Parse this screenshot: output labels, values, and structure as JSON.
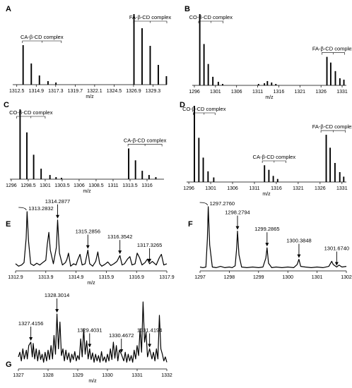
{
  "chart_data": [
    {
      "panel": "A",
      "type": "line",
      "title": "",
      "xlabel": "m/z",
      "ylabel": "",
      "xlim": [
        1312.0,
        1331.0
      ],
      "ylim": [
        0,
        100
      ],
      "xticks": [
        1312.5,
        1314.9,
        1317.3,
        1319.7,
        1322.1,
        1324.5,
        1326.9,
        1329.3
      ],
      "peaks": [
        [
          1313.28,
          56
        ],
        [
          1314.29,
          30
        ],
        [
          1315.29,
          13
        ],
        [
          1316.35,
          5
        ],
        [
          1317.33,
          3
        ],
        [
          1326.95,
          100
        ],
        [
          1327.95,
          80
        ],
        [
          1328.95,
          55
        ],
        [
          1329.95,
          28
        ],
        [
          1330.95,
          12
        ]
      ],
      "annotations": [
        {
          "text": "CA-β-CD complex",
          "x1": 1313.2,
          "x2": 1318.0
        },
        {
          "text": "FA-β-CD complex",
          "x1": 1326.9,
          "x2": 1331.0
        }
      ]
    },
    {
      "panel": "B",
      "type": "line",
      "title": "",
      "xlabel": "m/z",
      "ylabel": "",
      "xlim": [
        1295.5,
        1332.0
      ],
      "ylim": [
        0,
        100
      ],
      "xticks": [
        1296,
        1301,
        1306,
        1311,
        1316,
        1321,
        1326,
        1331
      ],
      "peaks": [
        [
          1297.28,
          100
        ],
        [
          1298.28,
          58
        ],
        [
          1299.29,
          30
        ],
        [
          1300.38,
          12
        ],
        [
          1301.67,
          5
        ],
        [
          1302.7,
          2
        ],
        [
          1311.2,
          2
        ],
        [
          1312.6,
          3
        ],
        [
          1313.3,
          6
        ],
        [
          1314.3,
          4
        ],
        [
          1315.3,
          2
        ],
        [
          1327.4,
          40
        ],
        [
          1328.3,
          32
        ],
        [
          1329.4,
          20
        ],
        [
          1330.47,
          10
        ],
        [
          1331.42,
          8
        ]
      ],
      "annotations": [
        {
          "text": "CO-β-CD complex",
          "x1": 1297.0,
          "x2": 1302.8
        },
        {
          "text": "FA-β-CD complex",
          "x1": 1326.2,
          "x2": 1331.6
        }
      ]
    },
    {
      "panel": "C",
      "type": "line",
      "title": "",
      "xlabel": "m/z",
      "ylabel": "",
      "xlim": [
        1295.8,
        1318.5
      ],
      "ylim": [
        0,
        100
      ],
      "xticks": [
        1296,
        1298.5,
        1301,
        1303.5,
        1306,
        1308.5,
        1311,
        1313.5,
        1316
      ],
      "peaks": [
        [
          1297.3,
          100
        ],
        [
          1298.3,
          67
        ],
        [
          1299.3,
          35
        ],
        [
          1300.4,
          15
        ],
        [
          1301.7,
          6
        ],
        [
          1302.6,
          3
        ],
        [
          1303.4,
          2
        ],
        [
          1313.3,
          44
        ],
        [
          1314.3,
          27
        ],
        [
          1315.3,
          12
        ],
        [
          1316.3,
          6
        ],
        [
          1317.3,
          3
        ]
      ],
      "annotations": [
        {
          "text": "CO-β-CD complex",
          "x1": 1296.8,
          "x2": 1301.0
        },
        {
          "text": "CA-β-CD complex",
          "x1": 1313.2,
          "x2": 1318.2
        }
      ]
    },
    {
      "panel": "D",
      "type": "line",
      "title": "",
      "xlabel": "m/z",
      "ylabel": "",
      "xlim": [
        1295.5,
        1332.0
      ],
      "ylim": [
        0,
        100
      ],
      "xticks": [
        1296,
        1301,
        1306,
        1311,
        1316,
        1321,
        1326,
        1331
      ],
      "peaks": [
        [
          1297.28,
          100
        ],
        [
          1298.3,
          58
        ],
        [
          1299.3,
          32
        ],
        [
          1300.4,
          14
        ],
        [
          1301.7,
          6
        ],
        [
          1313.3,
          22
        ],
        [
          1314.3,
          16
        ],
        [
          1315.3,
          8
        ],
        [
          1316.3,
          4
        ],
        [
          1327.4,
          62
        ],
        [
          1328.3,
          45
        ],
        [
          1329.4,
          25
        ],
        [
          1330.5,
          13
        ],
        [
          1331.4,
          7
        ]
      ],
      "annotations": [
        {
          "text": "CO-β-CD complex",
          "x1": 1297.0,
          "x2": 1302.0
        },
        {
          "text": "CA-β-CD complex",
          "x1": 1312.8,
          "x2": 1318.2
        },
        {
          "text": "FA-β-CD complex",
          "x1": 1326.2,
          "x2": 1331.8
        }
      ]
    },
    {
      "panel": "E",
      "type": "line",
      "title": "",
      "xlabel": "m/z",
      "ylabel": "",
      "xlim": [
        1312.9,
        1317.9
      ],
      "ylim": [
        0,
        100
      ],
      "xticks": [
        1312.9,
        1313.9,
        1314.9,
        1315.9,
        1316.9,
        1317.9
      ],
      "profile": [
        [
          1312.9,
          12
        ],
        [
          1313.0,
          8
        ],
        [
          1313.1,
          10
        ],
        [
          1313.18,
          14
        ],
        [
          1313.25,
          55
        ],
        [
          1313.28,
          100
        ],
        [
          1313.33,
          50
        ],
        [
          1313.4,
          12
        ],
        [
          1313.5,
          9
        ],
        [
          1313.6,
          13
        ],
        [
          1313.7,
          10
        ],
        [
          1313.8,
          14
        ],
        [
          1313.9,
          18
        ],
        [
          1313.95,
          45
        ],
        [
          1314.0,
          65
        ],
        [
          1314.05,
          35
        ],
        [
          1314.15,
          12
        ],
        [
          1314.25,
          40
        ],
        [
          1314.29,
          86
        ],
        [
          1314.35,
          30
        ],
        [
          1314.45,
          10
        ],
        [
          1314.55,
          14
        ],
        [
          1314.6,
          20
        ],
        [
          1314.65,
          30
        ],
        [
          1314.72,
          8
        ],
        [
          1314.82,
          12
        ],
        [
          1314.9,
          10
        ],
        [
          1314.95,
          18
        ],
        [
          1315.03,
          28
        ],
        [
          1315.1,
          10
        ],
        [
          1315.2,
          12
        ],
        [
          1315.29,
          35
        ],
        [
          1315.35,
          12
        ],
        [
          1315.45,
          8
        ],
        [
          1315.55,
          16
        ],
        [
          1315.62,
          32
        ],
        [
          1315.68,
          12
        ],
        [
          1315.75,
          8
        ],
        [
          1315.85,
          11
        ],
        [
          1315.95,
          15
        ],
        [
          1316.05,
          9
        ],
        [
          1316.15,
          12
        ],
        [
          1316.25,
          16
        ],
        [
          1316.35,
          26
        ],
        [
          1316.42,
          10
        ],
        [
          1316.5,
          12
        ],
        [
          1316.6,
          20
        ],
        [
          1316.68,
          24
        ],
        [
          1316.75,
          10
        ],
        [
          1316.85,
          12
        ],
        [
          1316.92,
          30
        ],
        [
          1317.0,
          22
        ],
        [
          1317.08,
          10
        ],
        [
          1317.18,
          14
        ],
        [
          1317.26,
          20
        ],
        [
          1317.33,
          12
        ],
        [
          1317.42,
          16
        ],
        [
          1317.55,
          10
        ],
        [
          1317.65,
          22
        ],
        [
          1317.72,
          28
        ],
        [
          1317.8,
          10
        ],
        [
          1317.9,
          12
        ]
      ],
      "labels": [
        {
          "text": "1313.2832",
          "x": 1313.28
        },
        {
          "text": "1314.2877",
          "x": 1314.29
        },
        {
          "text": "1315.2856",
          "x": 1315.29
        },
        {
          "text": "1316.3542",
          "x": 1316.35
        },
        {
          "text": "1317.3265",
          "x": 1317.33
        }
      ]
    },
    {
      "panel": "F",
      "type": "line",
      "title": "",
      "xlabel": "",
      "ylabel": "",
      "xlim": [
        1297,
        1302
      ],
      "ylim": [
        0,
        100
      ],
      "xticks": [
        1297,
        1298,
        1299,
        1300,
        1301,
        1302
      ],
      "profile": [
        [
          1297.0,
          6
        ],
        [
          1297.1,
          5
        ],
        [
          1297.2,
          6
        ],
        [
          1297.25,
          50
        ],
        [
          1297.28,
          100
        ],
        [
          1297.33,
          40
        ],
        [
          1297.42,
          6
        ],
        [
          1297.55,
          5
        ],
        [
          1297.7,
          7
        ],
        [
          1297.85,
          5
        ],
        [
          1298.0,
          6
        ],
        [
          1298.1,
          5
        ],
        [
          1298.2,
          8
        ],
        [
          1298.25,
          35
        ],
        [
          1298.28,
          62
        ],
        [
          1298.33,
          25
        ],
        [
          1298.42,
          6
        ],
        [
          1298.6,
          5
        ],
        [
          1298.8,
          6
        ],
        [
          1299.0,
          5
        ],
        [
          1299.15,
          6
        ],
        [
          1299.25,
          20
        ],
        [
          1299.29,
          36
        ],
        [
          1299.34,
          12
        ],
        [
          1299.45,
          5
        ],
        [
          1299.6,
          6
        ],
        [
          1299.8,
          5
        ],
        [
          1300.0,
          6
        ],
        [
          1300.2,
          5
        ],
        [
          1300.32,
          10
        ],
        [
          1300.38,
          18
        ],
        [
          1300.44,
          7
        ],
        [
          1300.6,
          6
        ],
        [
          1300.8,
          5
        ],
        [
          1301.0,
          6
        ],
        [
          1301.2,
          5
        ],
        [
          1301.4,
          7
        ],
        [
          1301.5,
          15
        ],
        [
          1301.55,
          10
        ],
        [
          1301.67,
          6
        ],
        [
          1301.75,
          9
        ],
        [
          1301.85,
          6
        ],
        [
          1302.0,
          7
        ]
      ],
      "labels": [
        {
          "text": "1297.2760",
          "x": 1297.28
        },
        {
          "text": "1298.2794",
          "x": 1298.28
        },
        {
          "text": "1299.2865",
          "x": 1299.29
        },
        {
          "text": "1300.3848",
          "x": 1300.38
        },
        {
          "text": "1301.6740",
          "x": 1301.67
        }
      ]
    },
    {
      "panel": "G",
      "type": "line",
      "title": "",
      "xlabel": "m/z",
      "ylabel": "",
      "xlim": [
        1327,
        1332
      ],
      "ylim": [
        0,
        100
      ],
      "xticks": [
        1327,
        1328,
        1329,
        1330,
        1331,
        1332
      ],
      "profile": [
        [
          1327.0,
          18
        ],
        [
          1327.05,
          25
        ],
        [
          1327.1,
          12
        ],
        [
          1327.15,
          30
        ],
        [
          1327.2,
          15
        ],
        [
          1327.27,
          28
        ],
        [
          1327.3,
          15
        ],
        [
          1327.35,
          35
        ],
        [
          1327.42,
          40
        ],
        [
          1327.47,
          18
        ],
        [
          1327.5,
          38
        ],
        [
          1327.55,
          15
        ],
        [
          1327.6,
          30
        ],
        [
          1327.65,
          12
        ],
        [
          1327.7,
          28
        ],
        [
          1327.75,
          14
        ],
        [
          1327.8,
          22
        ],
        [
          1327.85,
          10
        ],
        [
          1327.9,
          25
        ],
        [
          1327.95,
          12
        ],
        [
          1328.0,
          28
        ],
        [
          1328.05,
          14
        ],
        [
          1328.1,
          35
        ],
        [
          1328.15,
          15
        ],
        [
          1328.2,
          50
        ],
        [
          1328.25,
          22
        ],
        [
          1328.3,
          82
        ],
        [
          1328.35,
          30
        ],
        [
          1328.4,
          70
        ],
        [
          1328.45,
          20
        ],
        [
          1328.5,
          30
        ],
        [
          1328.55,
          12
        ],
        [
          1328.6,
          28
        ],
        [
          1328.65,
          14
        ],
        [
          1328.7,
          24
        ],
        [
          1328.75,
          10
        ],
        [
          1328.8,
          22
        ],
        [
          1328.85,
          14
        ],
        [
          1328.9,
          26
        ],
        [
          1328.95,
          12
        ],
        [
          1329.0,
          20
        ],
        [
          1329.05,
          14
        ],
        [
          1329.1,
          45
        ],
        [
          1329.15,
          18
        ],
        [
          1329.2,
          60
        ],
        [
          1329.25,
          22
        ],
        [
          1329.3,
          42
        ],
        [
          1329.35,
          15
        ],
        [
          1329.4,
          30
        ],
        [
          1329.45,
          14
        ],
        [
          1329.5,
          24
        ],
        [
          1329.55,
          10
        ],
        [
          1329.6,
          22
        ],
        [
          1329.65,
          12
        ],
        [
          1329.7,
          20
        ],
        [
          1329.75,
          10
        ],
        [
          1329.8,
          26
        ],
        [
          1329.85,
          12
        ],
        [
          1329.9,
          18
        ],
        [
          1329.95,
          10
        ],
        [
          1330.0,
          22
        ],
        [
          1330.05,
          12
        ],
        [
          1330.1,
          30
        ],
        [
          1330.15,
          14
        ],
        [
          1330.2,
          40
        ],
        [
          1330.25,
          16
        ],
        [
          1330.3,
          35
        ],
        [
          1330.35,
          12
        ],
        [
          1330.4,
          28
        ],
        [
          1330.47,
          22
        ],
        [
          1330.55,
          12
        ],
        [
          1330.6,
          25
        ],
        [
          1330.65,
          10
        ],
        [
          1330.7,
          22
        ],
        [
          1330.75,
          12
        ],
        [
          1330.8,
          20
        ],
        [
          1330.85,
          10
        ],
        [
          1330.9,
          28
        ],
        [
          1330.95,
          15
        ],
        [
          1331.0,
          35
        ],
        [
          1331.05,
          20
        ],
        [
          1331.1,
          60
        ],
        [
          1331.15,
          25
        ],
        [
          1331.2,
          100
        ],
        [
          1331.25,
          40
        ],
        [
          1331.3,
          55
        ],
        [
          1331.35,
          18
        ],
        [
          1331.42,
          30
        ],
        [
          1331.5,
          15
        ],
        [
          1331.55,
          25
        ],
        [
          1331.6,
          12
        ],
        [
          1331.65,
          30
        ],
        [
          1331.7,
          15
        ],
        [
          1331.75,
          80
        ],
        [
          1331.8,
          30
        ],
        [
          1331.85,
          22
        ],
        [
          1331.9,
          12
        ],
        [
          1331.95,
          18
        ],
        [
          1332.0,
          10
        ]
      ],
      "labels": [
        {
          "text": "1327.4156",
          "x": 1327.42
        },
        {
          "text": "1328.3014",
          "x": 1328.3
        },
        {
          "text": "1329.4031",
          "x": 1329.4
        },
        {
          "text": "1330.4672",
          "x": 1330.47
        },
        {
          "text": "1331.4194",
          "x": 1331.42
        }
      ]
    }
  ]
}
